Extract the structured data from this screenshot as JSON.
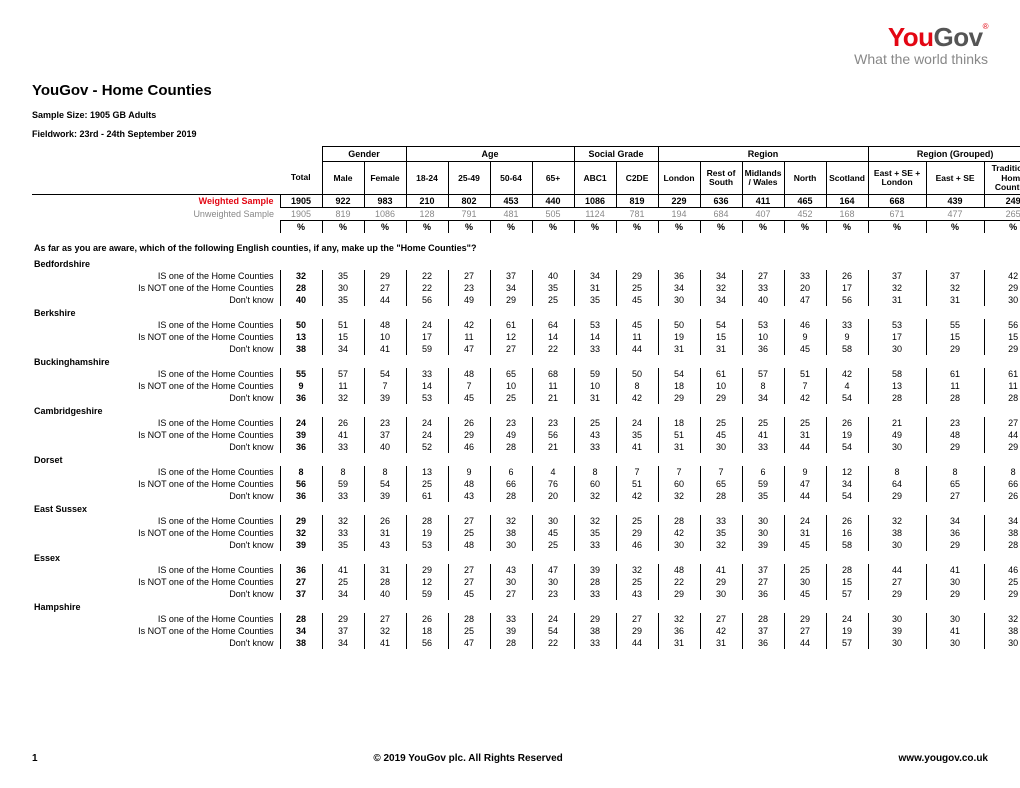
{
  "logo": {
    "you": "You",
    "gov": "Gov",
    "tag": "What the world thinks"
  },
  "title": "YouGov - Home Counties",
  "sample": "Sample Size: 1905 GB Adults",
  "fieldwork": "Fieldwork: 23rd - 24th September 2019",
  "groups": [
    "Gender",
    "Age",
    "Social Grade",
    "Region",
    "Region (Grouped)"
  ],
  "columns": [
    "Total",
    "Male",
    "Female",
    "18-24",
    "25-49",
    "50-64",
    "65+",
    "ABC1",
    "C2DE",
    "London",
    "Rest of South",
    "Midlands / Wales",
    "North",
    "Scotland",
    "East + SE + London",
    "East + SE",
    "Traditional Home Counties"
  ],
  "weighted_label": "Weighted Sample",
  "unweighted_label": "Unweighted Sample",
  "weighted": [
    "1905",
    "922",
    "983",
    "210",
    "802",
    "453",
    "440",
    "1086",
    "819",
    "229",
    "636",
    "411",
    "465",
    "164",
    "668",
    "439",
    "249"
  ],
  "unweighted": [
    "1905",
    "819",
    "1086",
    "128",
    "791",
    "481",
    "505",
    "1124",
    "781",
    "194",
    "684",
    "407",
    "452",
    "168",
    "671",
    "477",
    "265"
  ],
  "pct": "%",
  "question": "As far as you are aware, which of the following English counties, if any, make up the \"Home Counties\"?",
  "row_labels": {
    "is": "IS one of the Home Counties",
    "not": "Is NOT one of the Home Counties",
    "dk": "Don't know"
  },
  "counties": [
    {
      "name": "Bedfordshire",
      "is": [
        "32",
        "35",
        "29",
        "22",
        "27",
        "37",
        "40",
        "34",
        "29",
        "36",
        "34",
        "27",
        "33",
        "26",
        "37",
        "37",
        "42"
      ],
      "not": [
        "28",
        "30",
        "27",
        "22",
        "23",
        "34",
        "35",
        "31",
        "25",
        "34",
        "32",
        "33",
        "20",
        "17",
        "32",
        "32",
        "29"
      ],
      "dk": [
        "40",
        "35",
        "44",
        "56",
        "49",
        "29",
        "25",
        "35",
        "45",
        "30",
        "34",
        "40",
        "47",
        "56",
        "31",
        "31",
        "30"
      ]
    },
    {
      "name": "Berkshire",
      "is": [
        "50",
        "51",
        "48",
        "24",
        "42",
        "61",
        "64",
        "53",
        "45",
        "50",
        "54",
        "53",
        "46",
        "33",
        "53",
        "55",
        "56"
      ],
      "not": [
        "13",
        "15",
        "10",
        "17",
        "11",
        "12",
        "14",
        "14",
        "11",
        "19",
        "15",
        "10",
        "9",
        "9",
        "17",
        "15",
        "15"
      ],
      "dk": [
        "38",
        "34",
        "41",
        "59",
        "47",
        "27",
        "22",
        "33",
        "44",
        "31",
        "31",
        "36",
        "45",
        "58",
        "30",
        "29",
        "29"
      ]
    },
    {
      "name": "Buckinghamshire",
      "is": [
        "55",
        "57",
        "54",
        "33",
        "48",
        "65",
        "68",
        "59",
        "50",
        "54",
        "61",
        "57",
        "51",
        "42",
        "58",
        "61",
        "61"
      ],
      "not": [
        "9",
        "11",
        "7",
        "14",
        "7",
        "10",
        "11",
        "10",
        "8",
        "18",
        "10",
        "8",
        "7",
        "4",
        "13",
        "11",
        "11"
      ],
      "dk": [
        "36",
        "32",
        "39",
        "53",
        "45",
        "25",
        "21",
        "31",
        "42",
        "29",
        "29",
        "34",
        "42",
        "54",
        "28",
        "28",
        "28"
      ]
    },
    {
      "name": "Cambridgeshire",
      "is": [
        "24",
        "26",
        "23",
        "24",
        "26",
        "23",
        "23",
        "25",
        "24",
        "18",
        "25",
        "25",
        "25",
        "26",
        "21",
        "23",
        "27"
      ],
      "not": [
        "39",
        "41",
        "37",
        "24",
        "29",
        "49",
        "56",
        "43",
        "35",
        "51",
        "45",
        "41",
        "31",
        "19",
        "49",
        "48",
        "44"
      ],
      "dk": [
        "36",
        "33",
        "40",
        "52",
        "46",
        "28",
        "21",
        "33",
        "41",
        "31",
        "30",
        "33",
        "44",
        "54",
        "30",
        "29",
        "29"
      ]
    },
    {
      "name": "Dorset",
      "is": [
        "8",
        "8",
        "8",
        "13",
        "9",
        "6",
        "4",
        "8",
        "7",
        "7",
        "7",
        "6",
        "9",
        "12",
        "8",
        "8",
        "8"
      ],
      "not": [
        "56",
        "59",
        "54",
        "25",
        "48",
        "66",
        "76",
        "60",
        "51",
        "60",
        "65",
        "59",
        "47",
        "34",
        "64",
        "65",
        "66"
      ],
      "dk": [
        "36",
        "33",
        "39",
        "61",
        "43",
        "28",
        "20",
        "32",
        "42",
        "32",
        "28",
        "35",
        "44",
        "54",
        "29",
        "27",
        "26"
      ]
    },
    {
      "name": "East Sussex",
      "is": [
        "29",
        "32",
        "26",
        "28",
        "27",
        "32",
        "30",
        "32",
        "25",
        "28",
        "33",
        "30",
        "24",
        "26",
        "32",
        "34",
        "34"
      ],
      "not": [
        "32",
        "33",
        "31",
        "19",
        "25",
        "38",
        "45",
        "35",
        "29",
        "42",
        "35",
        "30",
        "31",
        "16",
        "38",
        "36",
        "38"
      ],
      "dk": [
        "39",
        "35",
        "43",
        "53",
        "48",
        "30",
        "25",
        "33",
        "46",
        "30",
        "32",
        "39",
        "45",
        "58",
        "30",
        "29",
        "28"
      ]
    },
    {
      "name": "Essex",
      "is": [
        "36",
        "41",
        "31",
        "29",
        "27",
        "43",
        "47",
        "39",
        "32",
        "48",
        "41",
        "37",
        "25",
        "28",
        "44",
        "41",
        "46"
      ],
      "not": [
        "27",
        "25",
        "28",
        "12",
        "27",
        "30",
        "30",
        "28",
        "25",
        "22",
        "29",
        "27",
        "30",
        "15",
        "27",
        "30",
        "25"
      ],
      "dk": [
        "37",
        "34",
        "40",
        "59",
        "45",
        "27",
        "23",
        "33",
        "43",
        "29",
        "30",
        "36",
        "45",
        "57",
        "29",
        "29",
        "29"
      ]
    },
    {
      "name": "Hampshire",
      "is": [
        "28",
        "29",
        "27",
        "26",
        "28",
        "33",
        "24",
        "29",
        "27",
        "32",
        "27",
        "28",
        "29",
        "24",
        "30",
        "30",
        "32"
      ],
      "not": [
        "34",
        "37",
        "32",
        "18",
        "25",
        "39",
        "54",
        "38",
        "29",
        "36",
        "42",
        "37",
        "27",
        "19",
        "39",
        "41",
        "38"
      ],
      "dk": [
        "38",
        "34",
        "41",
        "56",
        "47",
        "28",
        "22",
        "33",
        "44",
        "31",
        "31",
        "36",
        "44",
        "57",
        "30",
        "30",
        "30"
      ]
    }
  ],
  "footer": {
    "page": "1",
    "copyright": "© 2019 YouGov plc. All Rights Reserved",
    "url": "www.yougov.co.uk"
  }
}
